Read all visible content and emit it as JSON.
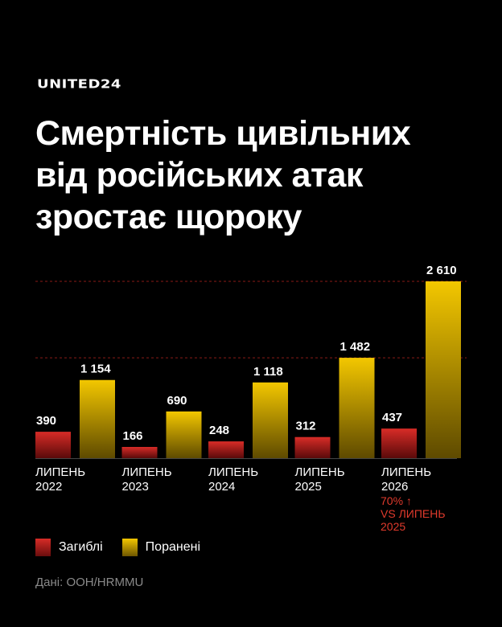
{
  "brand": "UNITED24",
  "title_lines": [
    "Смертність цивільних",
    "від російських атак",
    "зростає щороку"
  ],
  "chart_data": {
    "type": "bar",
    "categories": [
      [
        "ЛИПЕНЬ",
        "2022"
      ],
      [
        "ЛИПЕНЬ",
        "2023"
      ],
      [
        "ЛИПЕНЬ",
        "2024"
      ],
      [
        "ЛИПЕНЬ",
        "2025"
      ],
      [
        "ЛИПЕНЬ",
        "2026"
      ]
    ],
    "series": [
      {
        "name": "Загиблі",
        "values": [
          390,
          166,
          248,
          312,
          437
        ],
        "labels": [
          "390",
          "166",
          "248",
          "312",
          "437"
        ]
      },
      {
        "name": "Поранені",
        "values": [
          1154,
          690,
          1118,
          1482,
          2610
        ],
        "labels": [
          "1 154",
          "690",
          "1 118",
          "1 482",
          "2 610"
        ]
      }
    ],
    "ylim": [
      0,
      2610
    ],
    "grid": "dashed lines at top values",
    "legend": "bottom-left"
  },
  "annotation": [
    "70% ↑",
    "VS ЛИПЕНЬ",
    "2025"
  ],
  "legend_items": [
    {
      "label": "Загиблі",
      "color": "#d42a26"
    },
    {
      "label": "Поранені",
      "color": "#f0c400"
    }
  ],
  "source": "Дані: ООН/HRMMU"
}
